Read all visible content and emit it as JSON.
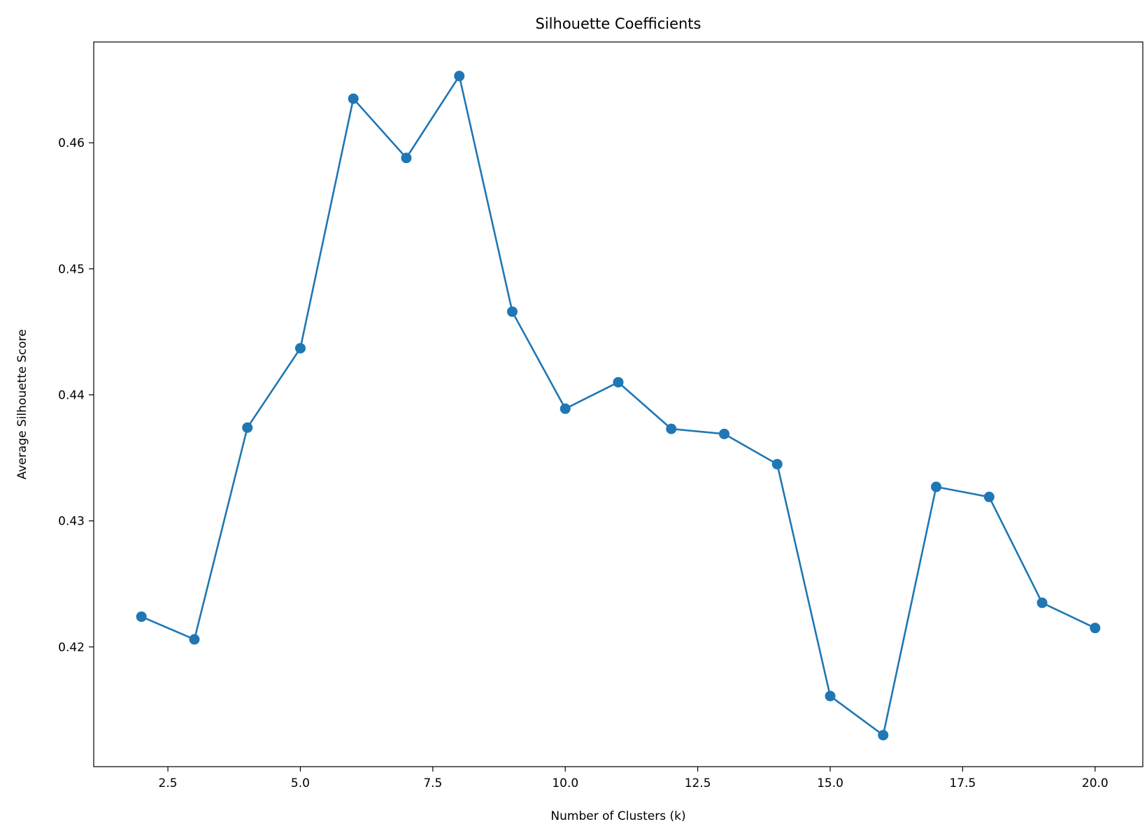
{
  "chart_data": {
    "type": "line",
    "title": "Silhouette Coefficients",
    "xlabel": "Number of Clusters (k)",
    "ylabel": "Average Silhouette Score",
    "x": [
      2,
      3,
      4,
      5,
      6,
      7,
      8,
      9,
      10,
      11,
      12,
      13,
      14,
      15,
      16,
      17,
      18,
      19,
      20
    ],
    "series": [
      {
        "values": [
          0.4224,
          0.4206,
          0.4374,
          0.4437,
          0.4635,
          0.4588,
          0.4653,
          0.4466,
          0.4389,
          0.441,
          0.4373,
          0.4369,
          0.4345,
          0.4161,
          0.413,
          0.4327,
          0.4319,
          0.4235,
          0.4215
        ],
        "color": "#1f77b4",
        "marker": "circle"
      }
    ],
    "xlim": [
      1.1,
      20.9
    ],
    "ylim": [
      0.4105,
      0.468
    ],
    "xticks": [
      2.5,
      5.0,
      7.5,
      10.0,
      12.5,
      15.0,
      17.5,
      20.0
    ],
    "xtick_labels": [
      "2.5",
      "5.0",
      "7.5",
      "10.0",
      "12.5",
      "15.0",
      "17.5",
      "20.0"
    ],
    "yticks": [
      0.42,
      0.43,
      0.44,
      0.45,
      0.46
    ],
    "ytick_labels": [
      "0.42",
      "0.43",
      "0.44",
      "0.45",
      "0.46"
    ],
    "grid": false,
    "legend": "none"
  }
}
